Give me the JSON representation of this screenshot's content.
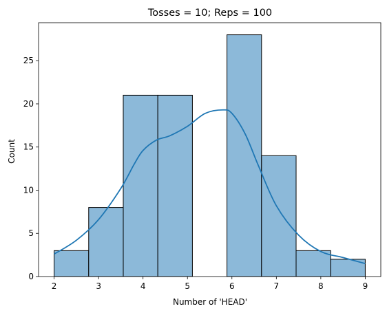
{
  "chart_data": {
    "type": "histogram",
    "title": "Tosses = 10; Reps = 100",
    "xlabel": "Number of 'HEAD'",
    "ylabel": "Count",
    "xlim": [
      1.65,
      9.35
    ],
    "ylim": [
      0,
      29.4
    ],
    "xticks": [
      2,
      3,
      4,
      5,
      6,
      7,
      8,
      9
    ],
    "yticks": [
      0,
      5,
      10,
      15,
      20,
      25
    ],
    "bins": [
      {
        "start": 2.0,
        "end": 2.777778,
        "count": 3
      },
      {
        "start": 2.777778,
        "end": 3.555556,
        "count": 8
      },
      {
        "start": 3.555556,
        "end": 4.333333,
        "count": 21
      },
      {
        "start": 4.333333,
        "end": 5.111111,
        "count": 21
      },
      {
        "start": 5.111111,
        "end": 5.888889,
        "count": 0
      },
      {
        "start": 5.888889,
        "end": 6.666667,
        "count": 28
      },
      {
        "start": 6.666667,
        "end": 7.444444,
        "count": 14
      },
      {
        "start": 7.444444,
        "end": 8.222222,
        "count": 3
      },
      {
        "start": 8.222222,
        "end": 9.0,
        "count": 2
      }
    ],
    "kde": {
      "x": [
        2.0,
        2.5,
        3.0,
        3.5,
        3.8,
        4.0,
        4.3,
        4.6,
        5.0,
        5.4,
        5.8,
        6.0,
        6.3,
        6.6,
        7.0,
        7.5,
        8.0,
        8.5,
        9.0
      ],
      "y": [
        2.6,
        4.2,
        6.6,
        10.2,
        13.0,
        14.6,
        15.8,
        16.3,
        17.4,
        18.9,
        19.3,
        18.9,
        16.5,
        12.8,
        8.2,
        4.8,
        2.9,
        2.2,
        1.5
      ]
    },
    "grid": false,
    "legend": "none",
    "colors": {
      "bar_fill": "#8cb9d9",
      "bar_edge": "#000000",
      "kde_line": "#1f77b4"
    }
  }
}
